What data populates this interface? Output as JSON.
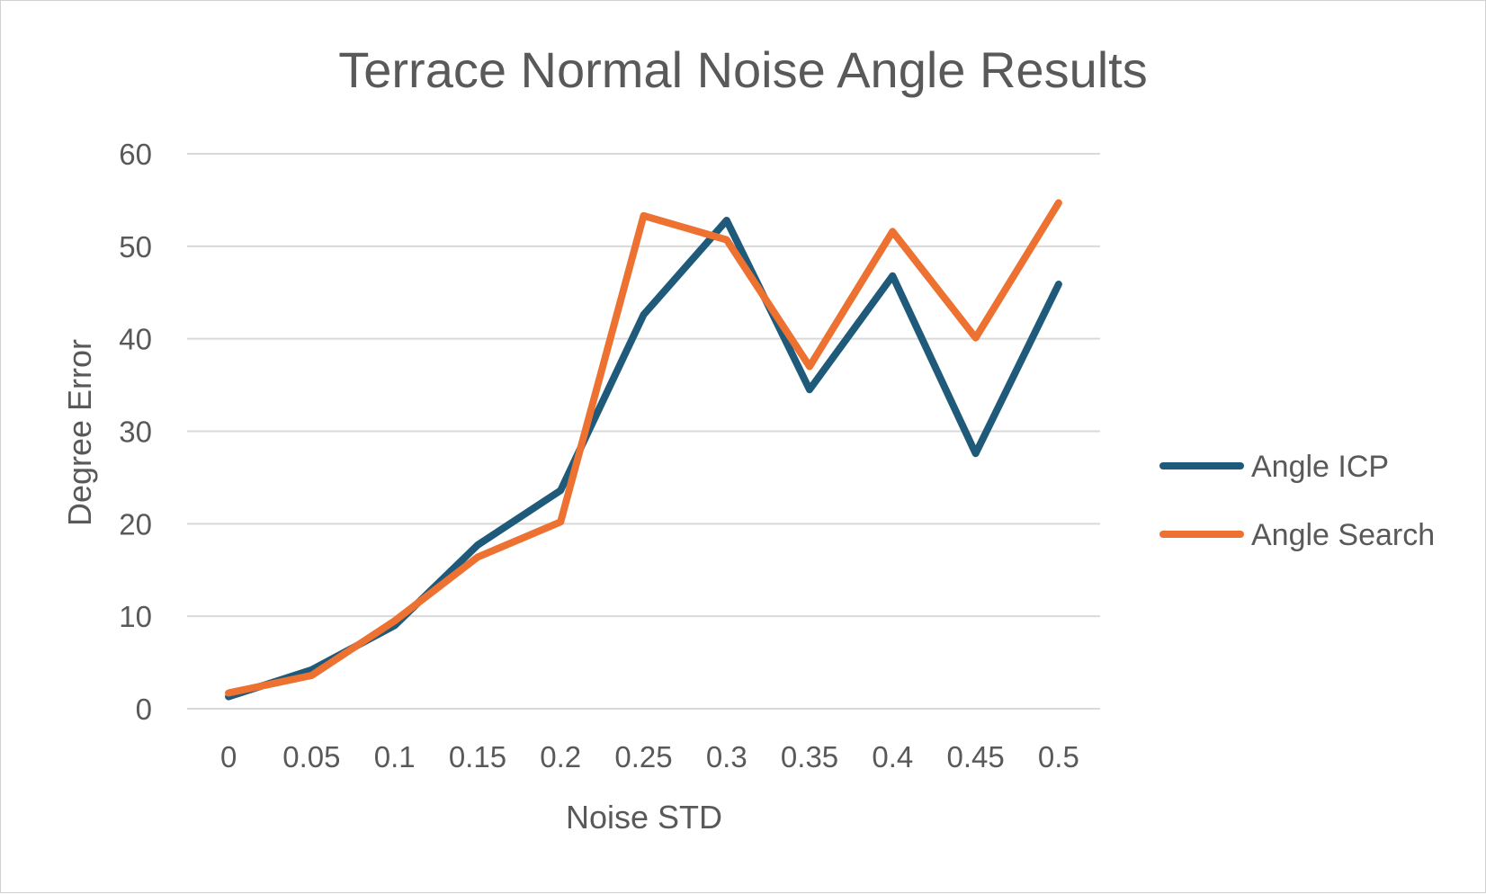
{
  "chart_data": {
    "type": "line",
    "title": "Terrace Normal Noise Angle Results",
    "xlabel": "Noise STD",
    "ylabel": "Degree Error",
    "categories": [
      "0",
      "0.05",
      "0.1",
      "0.15",
      "0.2",
      "0.25",
      "0.3",
      "0.35",
      "0.4",
      "0.45",
      "0.5"
    ],
    "ylim": [
      0,
      60
    ],
    "yticks": [
      0,
      10,
      20,
      30,
      40,
      50,
      60
    ],
    "grid": true,
    "legend_position": "right",
    "series": [
      {
        "name": "Angle ICP",
        "color": "#1f5a7a",
        "values": [
          1.3,
          4.2,
          9.0,
          17.7,
          23.6,
          42.6,
          52.8,
          34.5,
          46.8,
          27.6,
          45.9
        ]
      },
      {
        "name": "Angle Search",
        "color": "#ed7130",
        "values": [
          1.7,
          3.6,
          9.5,
          16.4,
          20.2,
          53.3,
          50.7,
          37.0,
          51.6,
          40.1,
          54.7
        ]
      }
    ]
  }
}
